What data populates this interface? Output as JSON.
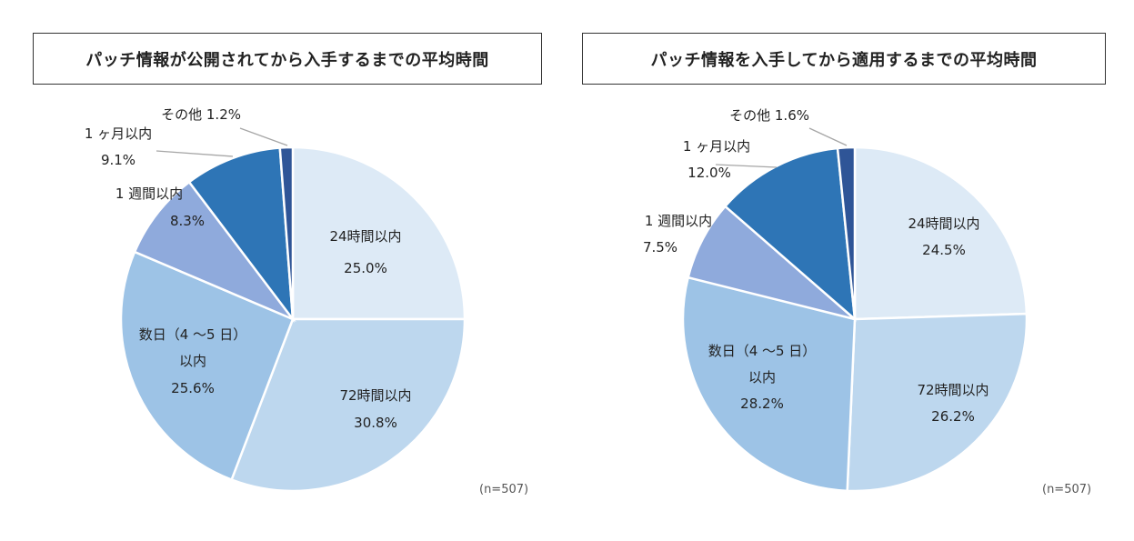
{
  "chart_data": [
    {
      "type": "pie",
      "title": "パッチ情報が公開されてから入手するまでの平均時間",
      "note": "(n=507)",
      "slices": [
        {
          "label": "24時間以内",
          "value": 25.0,
          "display": "25.0%",
          "color": "#ddeaf6"
        },
        {
          "label": "72時間以内",
          "value": 30.8,
          "display": "30.8%",
          "color": "#bdd7ee"
        },
        {
          "label": "数日（4 ～5 日）以内",
          "label_lines": [
            "数日（4 ～5 日）",
            "以内"
          ],
          "value": 25.6,
          "display": "25.6%",
          "color": "#9dc3e6"
        },
        {
          "label": "1 週間以内",
          "value": 8.3,
          "display": "8.3%",
          "color": "#8faadc"
        },
        {
          "label": "1 ヶ月以内",
          "value": 9.1,
          "display": "9.1%",
          "color": "#2e75b6"
        },
        {
          "label": "その他",
          "value": 1.2,
          "display": "1.2%",
          "color": "#2f5597"
        }
      ]
    },
    {
      "type": "pie",
      "title": "パッチ情報を入手してから適用するまでの平均時間",
      "note": "(n=507)",
      "slices": [
        {
          "label": "24時間以内",
          "value": 24.5,
          "display": "24.5%",
          "color": "#ddeaf6"
        },
        {
          "label": "72時間以内",
          "value": 26.2,
          "display": "26.2%",
          "color": "#bdd7ee"
        },
        {
          "label": "数日（4 ～5 日）以内",
          "label_lines": [
            "数日（4 ～5 日）",
            "以内"
          ],
          "value": 28.2,
          "display": "28.2%",
          "color": "#9dc3e6"
        },
        {
          "label": "1 週間以内",
          "value": 7.5,
          "display": "7.5%",
          "color": "#8faadc"
        },
        {
          "label": "1 ヶ月以内",
          "value": 12.0,
          "display": "12.0%",
          "color": "#2e75b6"
        },
        {
          "label": "その他",
          "value": 1.6,
          "display": "1.6%",
          "color": "#2f5597"
        }
      ]
    }
  ]
}
